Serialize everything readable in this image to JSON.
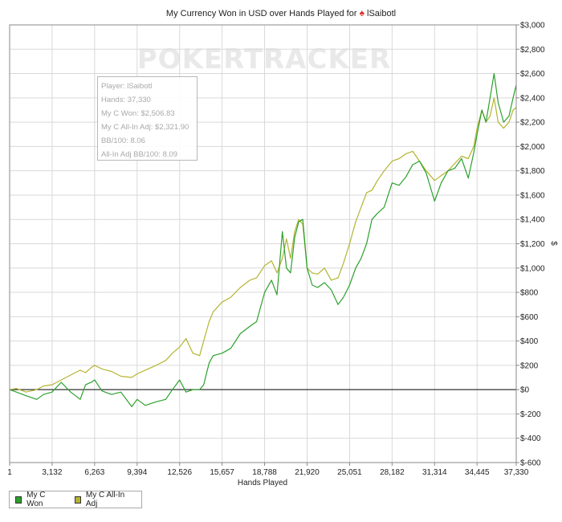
{
  "chart_data": {
    "type": "line",
    "title_prefix": "My Currency Won in USD over Hands Played for",
    "title_player": "lSaibotl",
    "title_icon": "spade-icon",
    "watermark": "POKERTRACKER",
    "xlabel": "Hands Played",
    "ylabel": "$",
    "xlim": [
      1,
      37330
    ],
    "ylim": [
      -600,
      3000
    ],
    "x_ticks": [
      1,
      3132,
      6263,
      9394,
      12526,
      15657,
      18788,
      21920,
      25051,
      28182,
      31314,
      34445,
      37330
    ],
    "x_tick_labels": [
      "1",
      "3,132",
      "6,263",
      "9,394",
      "12,526",
      "15,657",
      "18,788",
      "21,920",
      "25,051",
      "28,182",
      "31,314",
      "34,445",
      "37,330"
    ],
    "y_ticks": [
      -600,
      -400,
      -200,
      0,
      200,
      400,
      600,
      800,
      1000,
      1200,
      1400,
      1600,
      1800,
      2000,
      2200,
      2400,
      2600,
      2800,
      3000
    ],
    "y_tick_labels": [
      "$-600",
      "$-400",
      "$-200",
      "$0",
      "$200",
      "$400",
      "$600",
      "$800",
      "$1,000",
      "$1,200",
      "$1,400",
      "$1,600",
      "$1,800",
      "$2,000",
      "$2,200",
      "$2,400",
      "$2,600",
      "$2,800",
      "$3,000"
    ],
    "grid": true,
    "legend_position": "bottom-left",
    "series": [
      {
        "name": "My C Won",
        "color": "#2ca02c",
        "x": [
          1,
          500,
          1200,
          2000,
          2500,
          3132,
          3800,
          4500,
          5200,
          5600,
          6000,
          6263,
          6800,
          7500,
          8200,
          9000,
          9394,
          10000,
          10800,
          11500,
          12000,
          12526,
          13000,
          13500,
          14000,
          14300,
          14700,
          15000,
          15657,
          16300,
          17000,
          17700,
          18200,
          18788,
          19300,
          19700,
          20100,
          20400,
          20700,
          21000,
          21300,
          21600,
          21920,
          22300,
          22700,
          23200,
          23700,
          24200,
          24600,
          25051,
          25500,
          25900,
          26300,
          26700,
          27100,
          27600,
          28182,
          28700,
          29200,
          29700,
          30200,
          30700,
          31314,
          31800,
          32300,
          32800,
          33300,
          33800,
          34200,
          34445,
          34800,
          35100,
          35400,
          35700,
          36000,
          36400,
          36800,
          37100,
          37330
        ],
        "y": [
          0,
          -20,
          -50,
          -80,
          -40,
          -20,
          60,
          -20,
          -80,
          40,
          60,
          80,
          -10,
          -40,
          -20,
          -140,
          -80,
          -130,
          -100,
          -80,
          0,
          80,
          -20,
          0,
          0,
          40,
          220,
          280,
          300,
          340,
          460,
          520,
          560,
          800,
          900,
          780,
          1300,
          1000,
          960,
          1250,
          1380,
          1400,
          1000,
          860,
          840,
          880,
          820,
          700,
          760,
          860,
          1000,
          1080,
          1200,
          1400,
          1450,
          1500,
          1700,
          1680,
          1750,
          1850,
          1880,
          1780,
          1550,
          1700,
          1800,
          1820,
          1900,
          1740,
          1950,
          2100,
          2300,
          2200,
          2400,
          2600,
          2360,
          2200,
          2250,
          2400,
          2506.83
        ]
      },
      {
        "name": "My C All-In Adj",
        "color": "#b4b432",
        "x": [
          1,
          500,
          1200,
          2000,
          2500,
          3132,
          3800,
          4500,
          5200,
          5600,
          6000,
          6263,
          6800,
          7500,
          8200,
          9000,
          9394,
          10000,
          10800,
          11500,
          12000,
          12526,
          13000,
          13500,
          14000,
          14300,
          14700,
          15000,
          15657,
          16300,
          17000,
          17700,
          18200,
          18788,
          19300,
          19700,
          20100,
          20400,
          20700,
          21000,
          21300,
          21600,
          21920,
          22300,
          22700,
          23200,
          23700,
          24200,
          24600,
          25051,
          25500,
          25900,
          26300,
          26700,
          27100,
          27600,
          28182,
          28700,
          29200,
          29700,
          30200,
          30700,
          31314,
          31800,
          32300,
          32800,
          33300,
          33800,
          34200,
          34445,
          34800,
          35100,
          35400,
          35700,
          36000,
          36400,
          36800,
          37100,
          37330
        ],
        "y": [
          0,
          10,
          -20,
          0,
          30,
          40,
          80,
          120,
          160,
          140,
          180,
          200,
          170,
          150,
          110,
          100,
          130,
          160,
          200,
          240,
          300,
          350,
          420,
          300,
          280,
          400,
          560,
          640,
          720,
          760,
          840,
          900,
          920,
          1020,
          1060,
          960,
          1080,
          1240,
          1080,
          1300,
          1400,
          1360,
          1000,
          960,
          950,
          1000,
          900,
          920,
          1040,
          1200,
          1380,
          1500,
          1620,
          1640,
          1720,
          1800,
          1880,
          1900,
          1940,
          1960,
          1880,
          1800,
          1720,
          1760,
          1800,
          1860,
          1920,
          1900,
          2000,
          2150,
          2300,
          2200,
          2250,
          2400,
          2200,
          2150,
          2200,
          2300,
          2321.9
        ]
      }
    ],
    "tooltip": {
      "player": "Player: lSaibotl",
      "hands": "Hands: 37,330",
      "won": "My C Won: $2,506.83",
      "allin": "My C All-In Adj: $2,321.90",
      "bb100": "BB/100: 8.06",
      "allin_bb100": "All-In Adj BB/100: 8.09"
    }
  }
}
